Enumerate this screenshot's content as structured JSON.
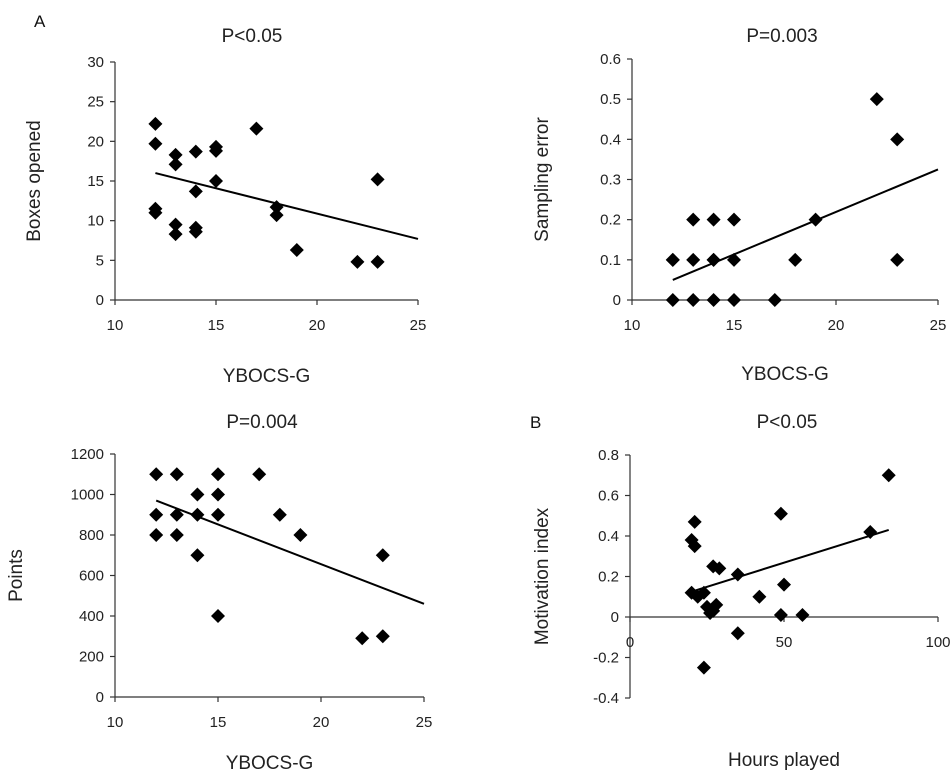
{
  "panels": {
    "a": {
      "letter": "A"
    },
    "b": {
      "letter": "B"
    }
  },
  "chart_data": [
    {
      "type": "scatter",
      "title": "P<0.05",
      "xlabel": "YBOCS-G",
      "ylabel": "Boxes opened",
      "xlim": [
        10,
        25
      ],
      "ylim": [
        0,
        30
      ],
      "xticks": [
        10,
        15,
        20,
        25
      ],
      "yticks": [
        0,
        5,
        10,
        15,
        20,
        25,
        30
      ],
      "points": [
        [
          12,
          22.2
        ],
        [
          12,
          19.7
        ],
        [
          12,
          11.5
        ],
        [
          12,
          11
        ],
        [
          13,
          18.3
        ],
        [
          13,
          17.1
        ],
        [
          13,
          9.5
        ],
        [
          13,
          8.3
        ],
        [
          14,
          18.7
        ],
        [
          14,
          13.7
        ],
        [
          14,
          9.1
        ],
        [
          14,
          8.6
        ],
        [
          15,
          19.3
        ],
        [
          15,
          18.8
        ],
        [
          15,
          15
        ],
        [
          17,
          21.6
        ],
        [
          18,
          11.7
        ],
        [
          18,
          10.7
        ],
        [
          19,
          6.3
        ],
        [
          22,
          4.8
        ],
        [
          23,
          4.8
        ],
        [
          23,
          15.2
        ]
      ],
      "trendline": [
        [
          12,
          16
        ],
        [
          25,
          7.7
        ]
      ]
    },
    {
      "type": "scatter",
      "title": "P=0.003",
      "xlabel": "YBOCS-G",
      "ylabel": "Sampling error",
      "xlim": [
        10,
        25
      ],
      "ylim": [
        0,
        0.6
      ],
      "xticks": [
        10,
        15,
        20,
        25
      ],
      "yticks": [
        0,
        0.1,
        0.2,
        0.3,
        0.4,
        0.5,
        0.6
      ],
      "points": [
        [
          12,
          0.1
        ],
        [
          12,
          0.1
        ],
        [
          12,
          0
        ],
        [
          13,
          0.2
        ],
        [
          13,
          0.1
        ],
        [
          13,
          0
        ],
        [
          14,
          0.2
        ],
        [
          14,
          0.1
        ],
        [
          14,
          0.1
        ],
        [
          14,
          0
        ],
        [
          15,
          0.2
        ],
        [
          15,
          0.1
        ],
        [
          15,
          0
        ],
        [
          17,
          0
        ],
        [
          18,
          0.1
        ],
        [
          19,
          0.2
        ],
        [
          22,
          0.5
        ],
        [
          23,
          0.4
        ],
        [
          23,
          0.1
        ]
      ],
      "trendline": [
        [
          12,
          0.05
        ],
        [
          25,
          0.325
        ]
      ]
    },
    {
      "type": "scatter",
      "title": "P=0.004",
      "xlabel": "YBOCS-G",
      "ylabel": "Points",
      "xlim": [
        10,
        25
      ],
      "ylim": [
        0,
        1200
      ],
      "xticks": [
        10,
        15,
        20,
        25
      ],
      "yticks": [
        0,
        200,
        400,
        600,
        800,
        1000,
        1200
      ],
      "points": [
        [
          12,
          1100
        ],
        [
          12,
          900
        ],
        [
          12,
          800
        ],
        [
          13,
          1100
        ],
        [
          13,
          900
        ],
        [
          13,
          800
        ],
        [
          14,
          1000
        ],
        [
          14,
          900
        ],
        [
          14,
          700
        ],
        [
          15,
          1100
        ],
        [
          15,
          1000
        ],
        [
          15,
          900
        ],
        [
          15,
          400
        ],
        [
          17,
          1100
        ],
        [
          18,
          900
        ],
        [
          19,
          800
        ],
        [
          22,
          290
        ],
        [
          23,
          300
        ],
        [
          23,
          700
        ]
      ],
      "trendline": [
        [
          12,
          970
        ],
        [
          25,
          460
        ]
      ]
    },
    {
      "type": "scatter",
      "title": "P<0.05",
      "xlabel": "Hours played",
      "ylabel": "Motivation index",
      "xlim": [
        0,
        100
      ],
      "ylim": [
        -0.4,
        0.8
      ],
      "xticks": [
        0,
        50,
        100
      ],
      "yticks": [
        -0.4,
        -0.2,
        0,
        0.2,
        0.4,
        0.6,
        0.8
      ],
      "points": [
        [
          21,
          0.47
        ],
        [
          20,
          0.38
        ],
        [
          21,
          0.35
        ],
        [
          20,
          0.12
        ],
        [
          22,
          0.1
        ],
        [
          24,
          0.12
        ],
        [
          25,
          0.05
        ],
        [
          26,
          0.02
        ],
        [
          27,
          0.03
        ],
        [
          28,
          0.06
        ],
        [
          27,
          0.25
        ],
        [
          29,
          0.24
        ],
        [
          24,
          -0.25
        ],
        [
          35,
          0.21
        ],
        [
          35,
          -0.08
        ],
        [
          42,
          0.1
        ],
        [
          49,
          0.51
        ],
        [
          50,
          0.16
        ],
        [
          49,
          0.01
        ],
        [
          56,
          0.01
        ],
        [
          78,
          0.42
        ],
        [
          84,
          0.7
        ]
      ],
      "trendline": [
        [
          21,
          0.13
        ],
        [
          84,
          0.43
        ]
      ]
    }
  ]
}
